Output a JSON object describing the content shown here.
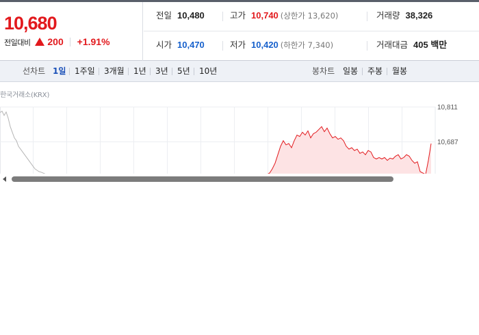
{
  "quote": {
    "current_price": "10,680",
    "change_label": "전일대비",
    "change_amount": "200",
    "change_percent": "+1.91%",
    "direction_icon": "up-triangle-icon",
    "up_color": "#e2191d",
    "down_color": "#1660cc"
  },
  "stats": {
    "prev_close": {
      "label": "전일",
      "value": "10,480"
    },
    "high": {
      "label": "고가",
      "value": "10,740",
      "sub": "(상한가 13,620)"
    },
    "volume": {
      "label": "거래량",
      "value": "38,326"
    },
    "open": {
      "label": "시가",
      "value": "10,470"
    },
    "low": {
      "label": "저가",
      "value": "10,420",
      "sub": "(하한가 7,340)"
    },
    "trade_value": {
      "label": "거래대금",
      "value": "405 백만"
    }
  },
  "toolbar": {
    "line_chart_label": "선차트",
    "periods": [
      "1일",
      "1주일",
      "3개월",
      "1년",
      "3년",
      "5년",
      "10년"
    ],
    "active_period": "1일",
    "candle_chart_label": "봉차트",
    "candle_periods": [
      "일봉",
      "주봉",
      "월봉"
    ]
  },
  "chart": {
    "source": "한국거래소(KRX)",
    "y_ticks": [
      "10,811",
      "10,687"
    ],
    "line_color": "#e2191d",
    "fill_color": "#fde3e4",
    "prev_line_color": "#b5b5b5"
  },
  "chart_data": {
    "type": "line",
    "title": "",
    "xlabel": "",
    "ylabel": "",
    "y_ticks": [
      10811,
      10687
    ],
    "grid": true,
    "series": [
      {
        "x": [
          0,
          3,
          6,
          9,
          12,
          15,
          18,
          21,
          24,
          27,
          30,
          33,
          36,
          39,
          42,
          45,
          48,
          51,
          54,
          57,
          60,
          63,
          66,
          69,
          72,
          75
        ],
        "y": [
          10790,
          10795,
          10780,
          10792,
          10770,
          10740,
          10720,
          10700,
          10690,
          10670,
          10660,
          10650,
          10640,
          10630,
          10620,
          10610,
          10600,
          10590,
          10585,
          10580,
          10578,
          10575,
          10572,
          10570,
          10568,
          10566
        ]
      },
      {
        "x": [
          390,
          394,
          398,
          402,
          406,
          410,
          414,
          418,
          422,
          426,
          430,
          434,
          438,
          442,
          446,
          450,
          454,
          458,
          462,
          466,
          470,
          474,
          478,
          482,
          486,
          490,
          494,
          498,
          502,
          506,
          510,
          514,
          518,
          522,
          526,
          530,
          534,
          538,
          542,
          546,
          550,
          554,
          558,
          562,
          566,
          570,
          574,
          578,
          582,
          586,
          590,
          594,
          598,
          602,
          606,
          610,
          614,
          618,
          622,
          626,
          630
        ],
        "y": [
          10570,
          10575,
          10590,
          10610,
          10640,
          10670,
          10690,
          10675,
          10680,
          10665,
          10690,
          10710,
          10705,
          10720,
          10710,
          10725,
          10700,
          10715,
          10720,
          10730,
          10740,
          10722,
          10735,
          10715,
          10700,
          10705,
          10695,
          10700,
          10690,
          10670,
          10660,
          10665,
          10655,
          10660,
          10645,
          10650,
          10640,
          10655,
          10650,
          10630,
          10625,
          10630,
          10625,
          10630,
          10620,
          10628,
          10625,
          10635,
          10640,
          10625,
          10630,
          10640,
          10635,
          10620,
          10610,
          10615,
          10580,
          10575,
          10570,
          10620,
          10680
        ]
      }
    ]
  },
  "scrollbar": {
    "left_arrow_icon": "scroll-left-icon"
  }
}
